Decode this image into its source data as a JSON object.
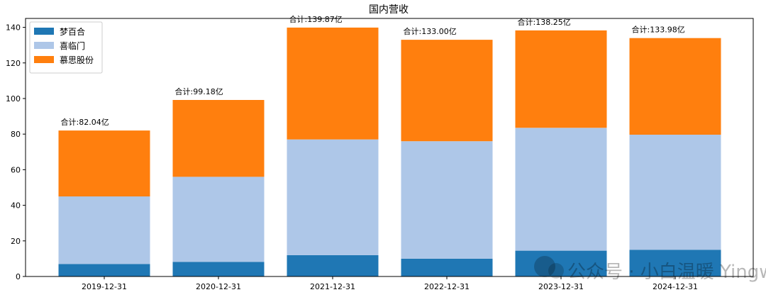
{
  "chart_data": {
    "type": "bar",
    "stacked": true,
    "title": "国内营收",
    "xlabel": "",
    "ylabel": "",
    "ylim": [
      0,
      145
    ],
    "yticks": [
      0,
      20,
      40,
      60,
      80,
      100,
      120,
      140
    ],
    "grid": false,
    "legend": "top-left",
    "categories": [
      "2019-12-31",
      "2020-12-31",
      "2021-12-31",
      "2022-12-31",
      "2023-12-31",
      "2024-12-31"
    ],
    "series": [
      {
        "name": "梦百合",
        "color": "#1f77b4",
        "values": [
          7.0,
          8.2,
          12.0,
          10.0,
          14.5,
          15.0
        ]
      },
      {
        "name": "喜临门",
        "color": "#aec7e8",
        "values": [
          38.0,
          47.8,
          65.0,
          66.0,
          69.0,
          64.7
        ]
      },
      {
        "name": "慕思股份",
        "color": "#ff7f0e",
        "values": [
          37.04,
          43.18,
          62.87,
          57.0,
          54.75,
          54.28
        ]
      }
    ],
    "totals": [
      82.04,
      99.18,
      139.87,
      133.0,
      138.25,
      133.98
    ],
    "total_labels": [
      "合计:82.04亿",
      "合计:99.18亿",
      "合计:139.87亿",
      "合计:133.00亿",
      "合计:138.25亿",
      "合计:133.98亿"
    ]
  },
  "watermark": "公众号 · 小白温暖 Yingwake"
}
